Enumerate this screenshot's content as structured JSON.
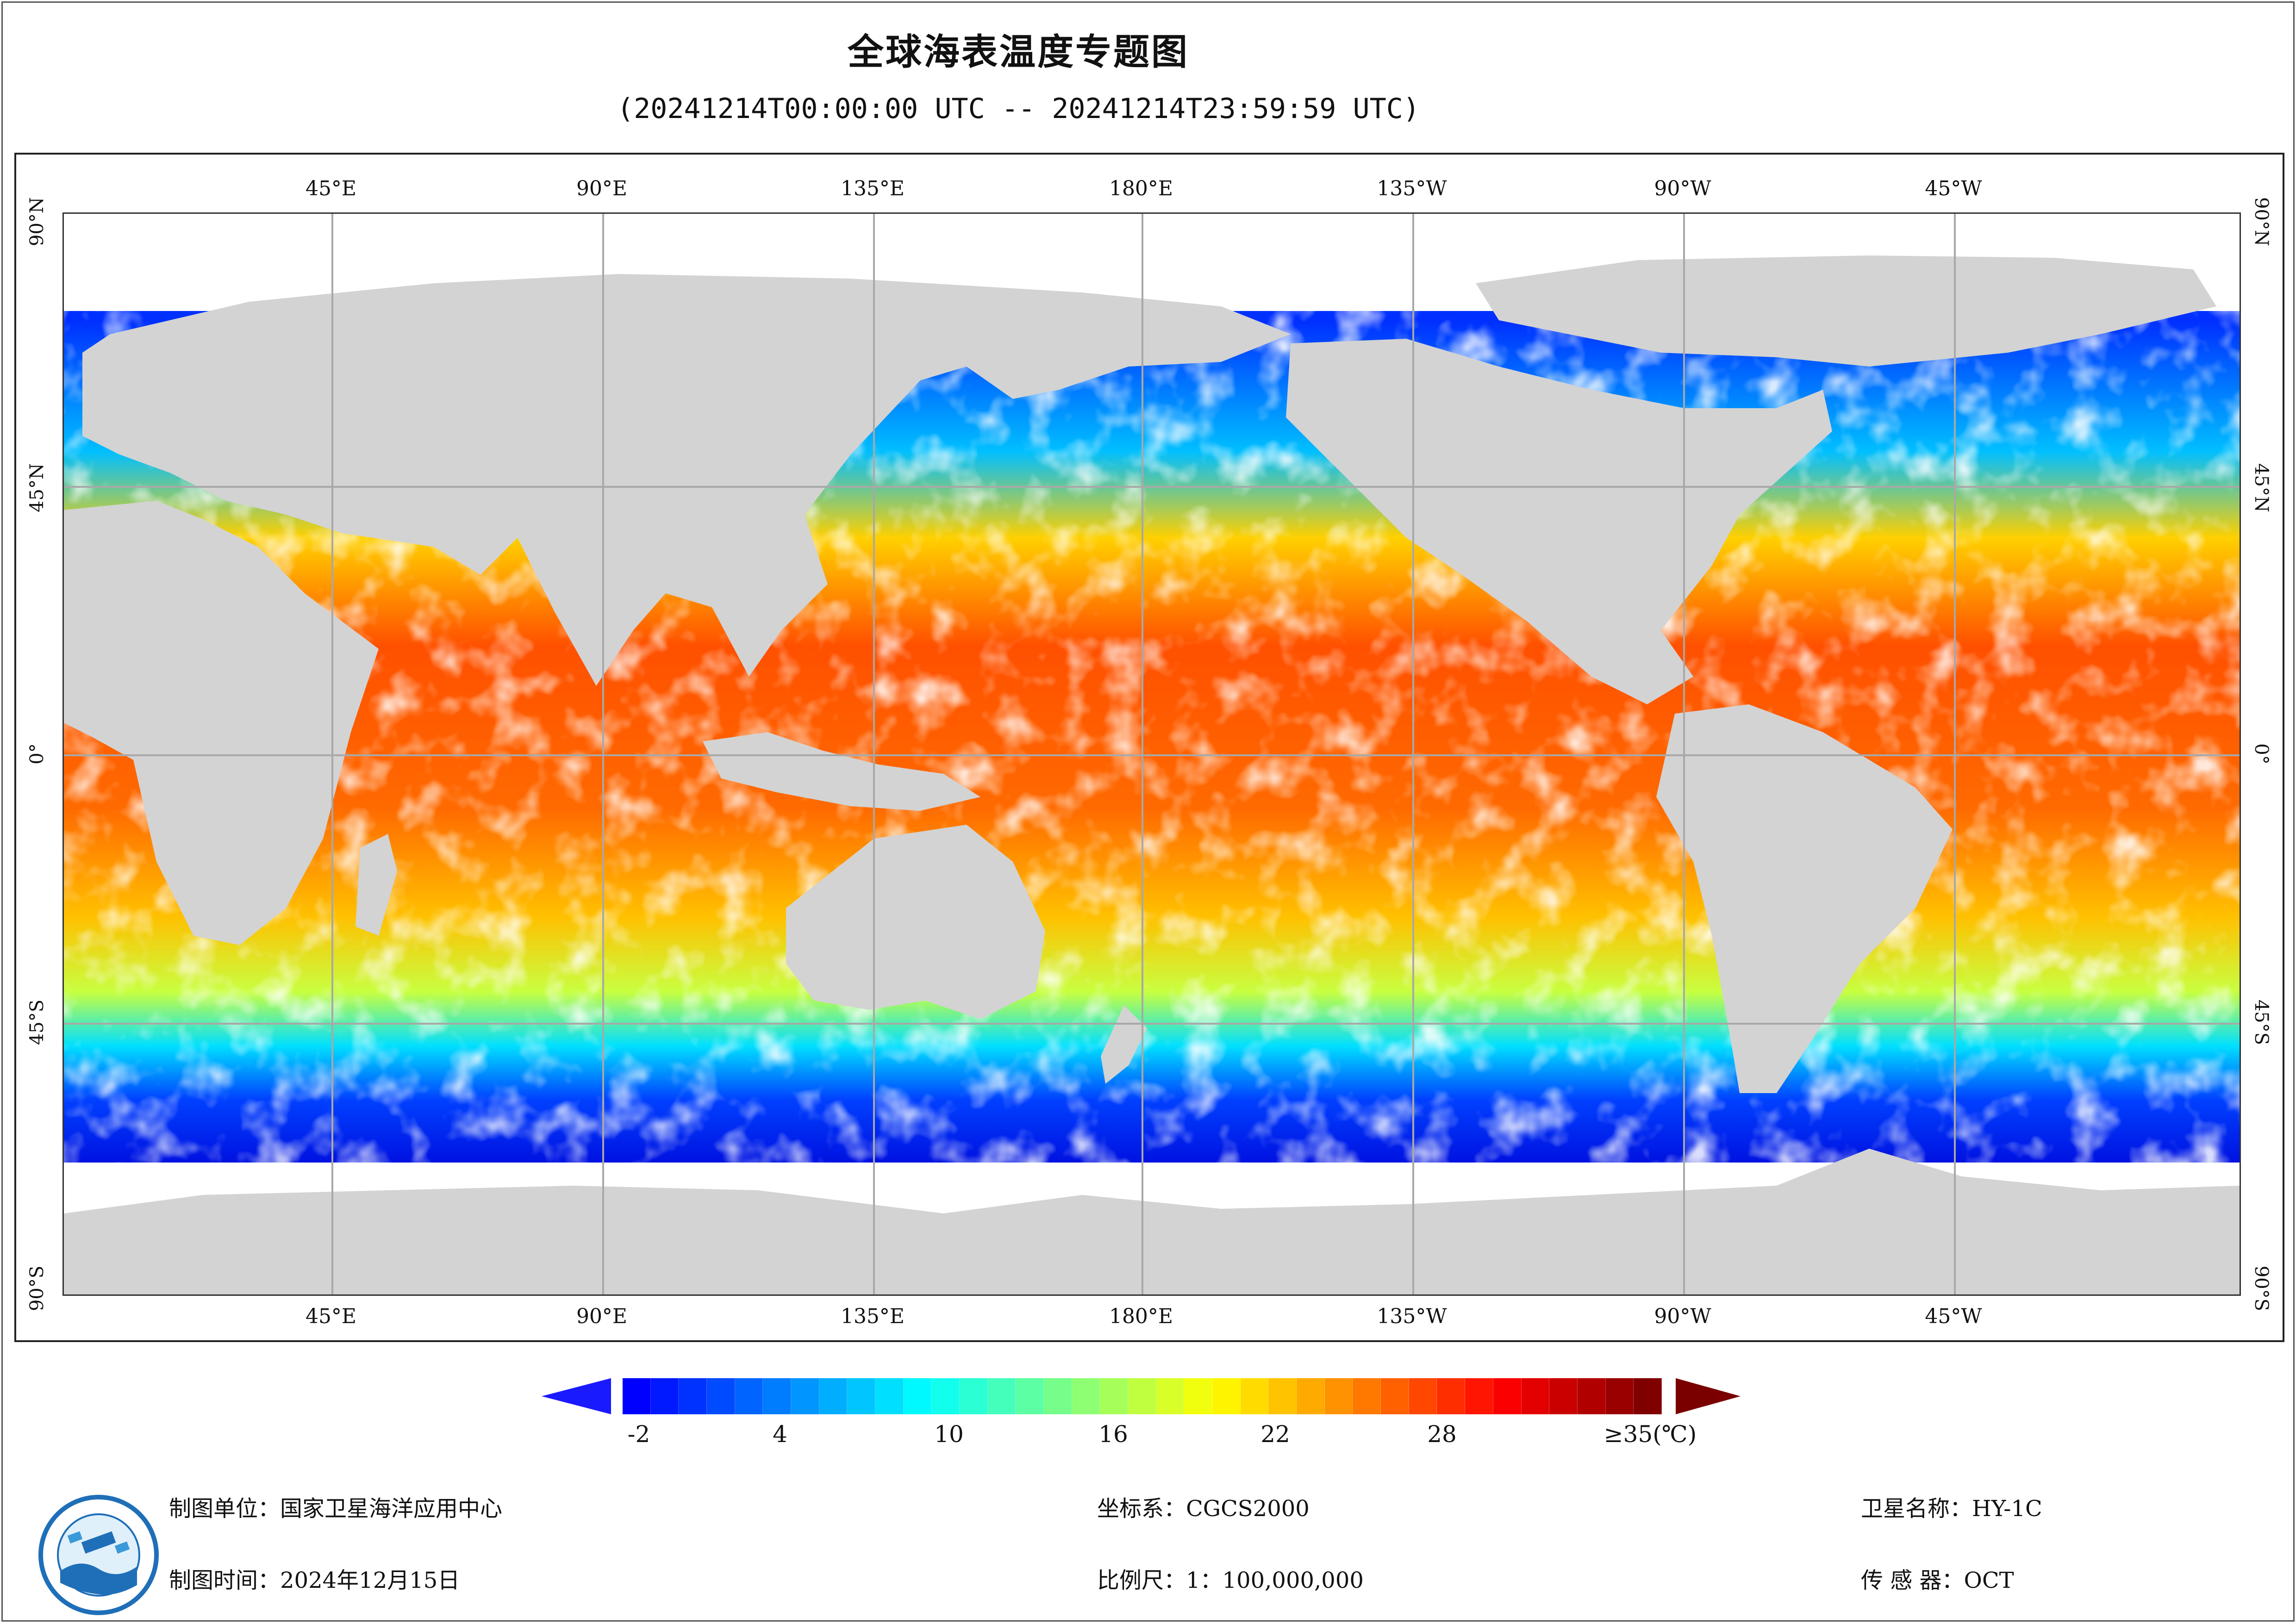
{
  "title": "全球海表温度专题图",
  "subtitle": "(20241214T00:00:00 UTC -- 20241214T23:59:59 UTC)",
  "map": {
    "longitude_labels": [
      "45°E",
      "90°E",
      "135°E",
      "180°E",
      "135°W",
      "90°W",
      "45°W"
    ],
    "latitude_labels": [
      "90°N",
      "45°N",
      "0°",
      "45°S",
      "90°S"
    ],
    "colors": {
      "land": "#d3d3d3",
      "nodata": "#ffffff",
      "grid": "#a8a8a8"
    }
  },
  "colorbar": {
    "tick_labels": [
      "-2",
      "4",
      "10",
      "16",
      "22",
      "28",
      "≥35(℃)"
    ],
    "colors": [
      "#0000ff",
      "#0040ff",
      "#0080ff",
      "#00bfff",
      "#00ffff",
      "#40ffbf",
      "#80ff80",
      "#bfff40",
      "#ffff00",
      "#ffbf00",
      "#ff8000",
      "#ff4000",
      "#ff0000",
      "#bf0000",
      "#800000"
    ]
  },
  "footer": {
    "mapping_unit": "制图单位：国家卫星海洋应用中心",
    "mapping_time": "制图时间：2024年12月15日",
    "coord_system": "坐标系：CGCS2000",
    "scale": "比例尺：1：100,000,000",
    "satellite": "卫星名称：HY-1C",
    "sensor": "传 感 器：OCT"
  }
}
